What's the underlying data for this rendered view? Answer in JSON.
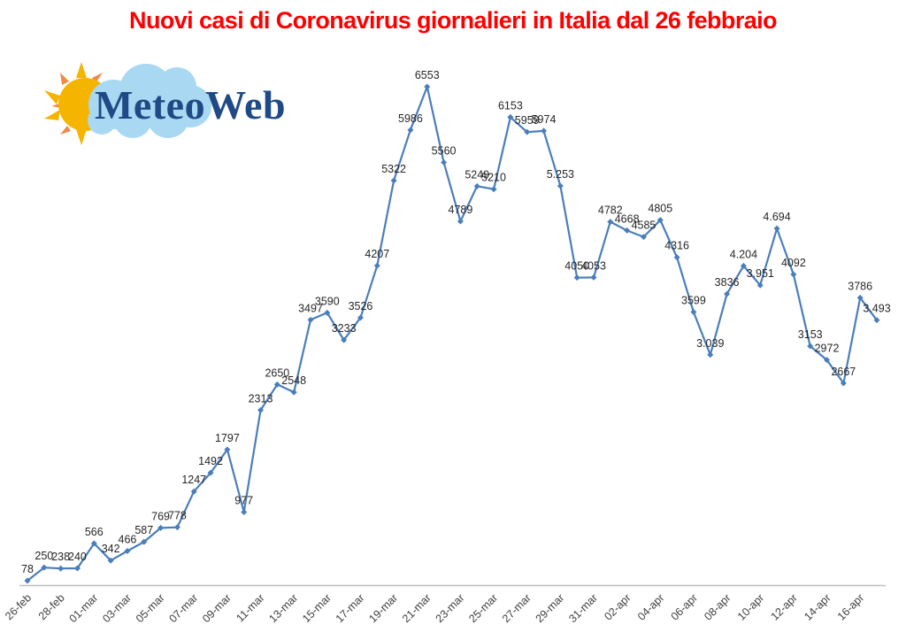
{
  "title": "Nuovi casi di Coronavirus giornalieri in Italia dal 26 febbraio",
  "logo": {
    "text": "MeteoWeb",
    "icon": "sun-cloud-icon"
  },
  "colors": {
    "title": "#ff0000",
    "line": "#4a7ebb",
    "axis": "#bfbfbf",
    "logo_text": "#1f4a85",
    "cloud": "#a9d8f2",
    "sun": "#f4b400"
  },
  "chart_data": {
    "type": "line",
    "title": "Nuovi casi di Coronavirus giornalieri in Italia dal 26 febbraio",
    "xlabel": "",
    "ylabel": "",
    "grid": false,
    "legend": null,
    "ylim": [
      0,
      6700
    ],
    "x": [
      "26-feb",
      "27-feb",
      "28-feb",
      "29-feb",
      "01-mar",
      "02-mar",
      "03-mar",
      "04-mar",
      "05-mar",
      "06-mar",
      "07-mar",
      "08-mar",
      "09-mar",
      "10-mar",
      "11-mar",
      "12-mar",
      "13-mar",
      "14-mar",
      "15-mar",
      "16-mar",
      "17-mar",
      "18-mar",
      "19-mar",
      "20-mar",
      "21-mar",
      "22-mar",
      "23-mar",
      "24-mar",
      "25-mar",
      "26-mar",
      "27-mar",
      "28-mar",
      "29-mar",
      "30-mar",
      "31-mar",
      "01-apr",
      "02-apr",
      "03-apr",
      "04-apr",
      "05-apr",
      "06-apr",
      "07-apr",
      "08-apr",
      "09-apr",
      "10-apr",
      "11-apr",
      "12-apr",
      "13-apr",
      "14-apr",
      "15-apr",
      "16-apr",
      "17-apr"
    ],
    "tick_labels": [
      "26-feb",
      "28-feb",
      "01-mar",
      "03-mar",
      "05-mar",
      "07-mar",
      "09-mar",
      "11-mar",
      "13-mar",
      "15-mar",
      "17-mar",
      "19-mar",
      "21-mar",
      "23-mar",
      "25-mar",
      "27-mar",
      "29-mar",
      "31-mar",
      "02-apr",
      "04-apr",
      "06-apr",
      "08-apr",
      "10-apr",
      "12-apr",
      "14-apr",
      "16-apr"
    ],
    "series": [
      {
        "name": "Nuovi casi",
        "values": [
          78,
          250,
          238,
          240,
          566,
          342,
          466,
          587,
          769,
          778,
          1247,
          1492,
          1797,
          977,
          2313,
          2650,
          2548,
          3497,
          3590,
          3233,
          3526,
          4207,
          5322,
          5986,
          6553,
          5560,
          4789,
          5249,
          5210,
          6153,
          5959,
          5974,
          5253,
          4050,
          4053,
          4782,
          4668,
          4585,
          4805,
          4316,
          3599,
          3039,
          3836,
          4204,
          3951,
          4694,
          4092,
          3153,
          2972,
          2667,
          3786,
          3493
        ],
        "labels": [
          "78",
          "250",
          "238",
          "240",
          "566",
          "342",
          "466",
          "587",
          "769",
          "778",
          "1247",
          "1492",
          "1797",
          "977",
          "2313",
          "2650",
          "2548",
          "3497",
          "3590",
          "3233",
          "3526",
          "4207",
          "5322",
          "5986",
          "6553",
          "5560",
          "4789",
          "5249",
          "5210",
          "6153",
          "5959",
          "5974",
          "5.253",
          "4050",
          "4053",
          "4782",
          "4668",
          "4585",
          "4805",
          "4316",
          "3599",
          "3.039",
          "3836",
          "4.204",
          "3.951",
          "4.694",
          "4092",
          "3153",
          "2972",
          "2667",
          "3786",
          "3.493"
        ]
      }
    ]
  }
}
